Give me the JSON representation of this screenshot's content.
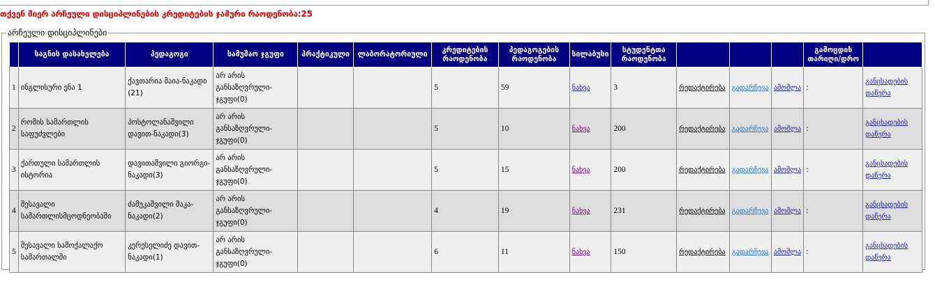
{
  "total_credits_text": "თქვენ მიერ არჩეული დისციპლინების კრედიტების ჯამური რაოდენობა:25",
  "fieldset_legend": "არჩეული დისციპლინები",
  "colors": {
    "header_bg": "#000080",
    "total_text": "#e00000",
    "row_odd": "#eeeeee",
    "row_even": "#dddddd"
  },
  "columns": [
    "",
    "საგნის დასახელება",
    "პედაგოგი",
    "სამუშაო ჯგუფი",
    "პრაქტიკული",
    "ლაბორატორიული",
    "კრედიტების რაოდენობა",
    "პედაგოგების რაოდენობა",
    "სილაბუსი",
    "სტუდენტთა რაოდენობა",
    "",
    "",
    "",
    "გამოცდის თარიღი/დრო",
    ""
  ],
  "links": {
    "view": "ნახვა",
    "edit": "რედაქტირება",
    "reselect": "გადარჩევა",
    "delete": "ამოშლა",
    "statement": "განცხადების დაწერა"
  },
  "rows": [
    {
      "num": "1",
      "subject": "ინგლისური ენა 1",
      "teacher": "ქავთარია მაია-ნაკადი (21)",
      "group": "არ არის განსაზღვრული-ჯგუფი(0)",
      "practical": "",
      "lab": "",
      "credits": "5",
      "teachers_count": "59",
      "students": "3",
      "exam_datetime": ":"
    },
    {
      "num": "2",
      "subject": "რომის სამართლის საფუძვლები",
      "teacher": "პოსტოლანაშვილი დავით-ნაკადი(3)",
      "group": "არ არის განსაზღვრული-ჯგუფი(0)",
      "practical": "",
      "lab": "",
      "credits": "5",
      "teachers_count": "10",
      "students": "200",
      "exam_datetime": ":"
    },
    {
      "num": "3",
      "subject": "ქართული სამართლის ისტორია",
      "teacher": "დავითაშვილი გიორგი-ნაკადი(3)",
      "group": "არ არის განსაზღვრული-ჯგუფი(0)",
      "practical": "",
      "lab": "",
      "credits": "5",
      "teachers_count": "15",
      "students": "200",
      "exam_datetime": ":"
    },
    {
      "num": "4",
      "subject": "შესავალი სამართლისმცოდნეობაში",
      "teacher": "ძამუკაშვილი მაკა-ნაკადი(2)",
      "group": "არ არის განსაზღვრული-ჯგუფი(0)",
      "practical": "",
      "lab": "",
      "credits": "4",
      "teachers_count": "19",
      "students": "231",
      "exam_datetime": ":"
    },
    {
      "num": "5",
      "subject": "შესავალი სამოქალაქო სამართალში",
      "teacher": "კერესელიძე დავით-ნაკადი(1)",
      "group": "არ არის განსაზღვრული-ჯგუფი(0)",
      "practical": "",
      "lab": "",
      "credits": "6",
      "teachers_count": "11",
      "students": "150",
      "exam_datetime": ":"
    }
  ]
}
